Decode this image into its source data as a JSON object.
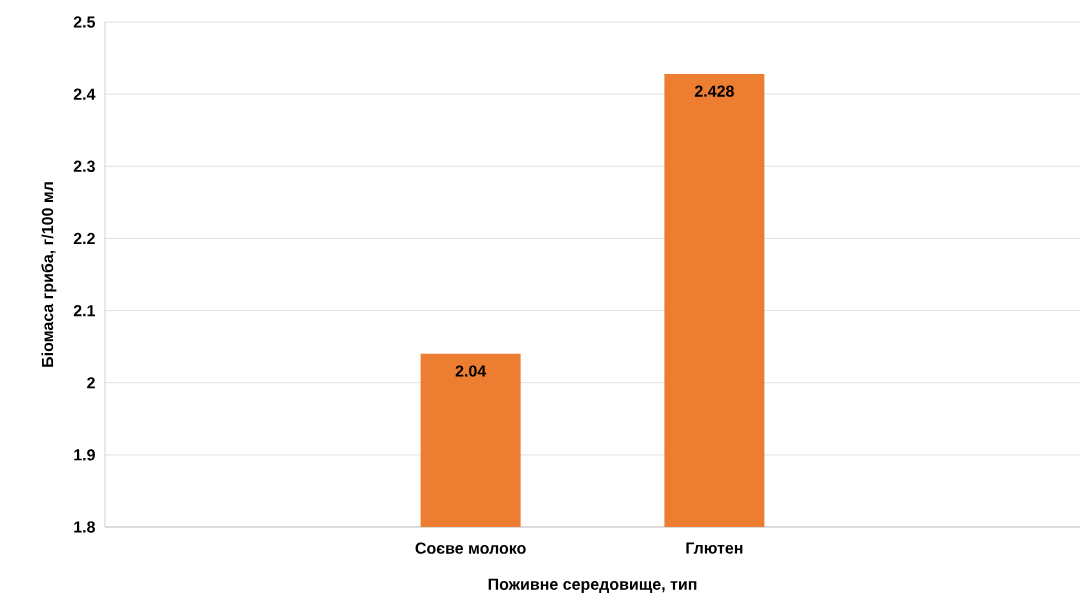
{
  "chart_data": {
    "type": "bar",
    "xlabel": "Поживне середовище, тип",
    "ylabel": "Біомаса гриба, г/100 мл",
    "categories": [
      null,
      "Соєве молоко",
      "Глютен",
      null
    ],
    "values": [
      null,
      2.04,
      2.428,
      null
    ],
    "color": "#ed7d31",
    "ylim": [
      1.8,
      2.5
    ],
    "yticks": [
      1.8,
      1.9,
      2,
      2.1,
      2.2,
      2.3,
      2.4,
      2.5
    ],
    "grid": "y",
    "data_labels": true
  }
}
